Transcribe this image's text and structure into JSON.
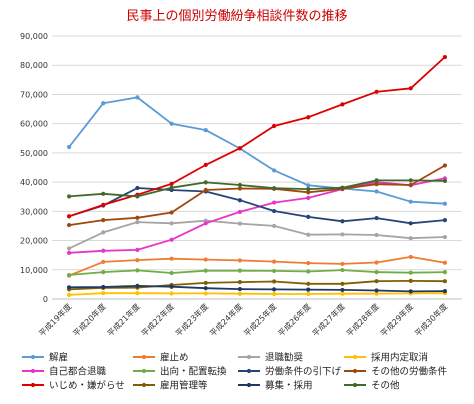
{
  "chart_data": {
    "type": "line",
    "title": "民事上の個別労働紛争相談件数の推移",
    "xlabel": "",
    "ylabel": "",
    "ylim": [
      0,
      90000
    ],
    "yticks": [
      "0",
      "10,000",
      "20,000",
      "30,000",
      "40,000",
      "50,000",
      "60,000",
      "70,000",
      "80,000",
      "90,000"
    ],
    "grid": true,
    "legend_position": "bottom",
    "categories": [
      "平成19年度",
      "平成20年度",
      "平成21年度",
      "平成22年度",
      "平成23年度",
      "平成24年度",
      "平成25年度",
      "平成26年度",
      "平成27年度",
      "平成28年度",
      "平成29年度",
      "平成30年度"
    ],
    "series": [
      {
        "name": "解雇",
        "color": "#5b9bd5",
        "values": [
          52000,
          67000,
          69000,
          60000,
          57800,
          51500,
          44000,
          38900,
          37800,
          36800,
          33300,
          32600
        ]
      },
      {
        "name": "雇止め",
        "color": "#ed7d31",
        "values": [
          8000,
          12700,
          13300,
          13800,
          13500,
          13200,
          12800,
          12300,
          12000,
          12500,
          14400,
          12400
        ]
      },
      {
        "name": "退職勧奨",
        "color": "#a5a5a5",
        "values": [
          17300,
          22800,
          26300,
          25900,
          26800,
          25800,
          25000,
          22000,
          22100,
          21900,
          20800,
          21200
        ]
      },
      {
        "name": "採用内定取消",
        "color": "#ffc000",
        "values": [
          1400,
          2000,
          2000,
          1900,
          1900,
          1800,
          1700,
          1700,
          1800,
          1800,
          1900,
          2000
        ]
      },
      {
        "name": "自己都合退職",
        "color": "#e834c9",
        "values": [
          15800,
          16500,
          16800,
          20300,
          25900,
          29800,
          33000,
          34600,
          37600,
          40000,
          38900,
          41300
        ]
      },
      {
        "name": "出向・配置転換",
        "color": "#70ad47",
        "values": [
          8200,
          9200,
          9800,
          8900,
          9700,
          9700,
          9600,
          9400,
          9900,
          9200,
          9000,
          9200
        ]
      },
      {
        "name": "労働条件の引下げ",
        "color": "#264478",
        "values": [
          28300,
          32000,
          38000,
          37300,
          36800,
          33800,
          30100,
          28100,
          26600,
          27700,
          25900,
          27000
        ]
      },
      {
        "name": "その他の労働条件",
        "color": "#9e480e",
        "values": [
          25300,
          27000,
          27800,
          29600,
          37300,
          37800,
          37700,
          36500,
          37700,
          39300,
          39000,
          45700
        ]
      },
      {
        "name": "いじめ・嫌がらせ",
        "color": "#dd0000",
        "values": [
          28300,
          32200,
          35700,
          39400,
          45900,
          51600,
          59200,
          62200,
          66600,
          70900,
          72100,
          82800
        ]
      },
      {
        "name": "雇用管理等",
        "color": "#7f6000",
        "values": [
          3300,
          3800,
          3900,
          4800,
          5500,
          5800,
          6000,
          5200,
          5200,
          6100,
          6200,
          6100
        ]
      },
      {
        "name": "募集・採用",
        "color": "#1f3864",
        "values": [
          4000,
          4100,
          4500,
          4200,
          3700,
          3400,
          3300,
          3200,
          3100,
          2900,
          2600,
          2700
        ]
      },
      {
        "name": "その他",
        "color": "#43682b",
        "values": [
          35100,
          36000,
          35100,
          38100,
          39900,
          39000,
          37900,
          37600,
          38100,
          40600,
          40600,
          40400
        ]
      }
    ]
  }
}
